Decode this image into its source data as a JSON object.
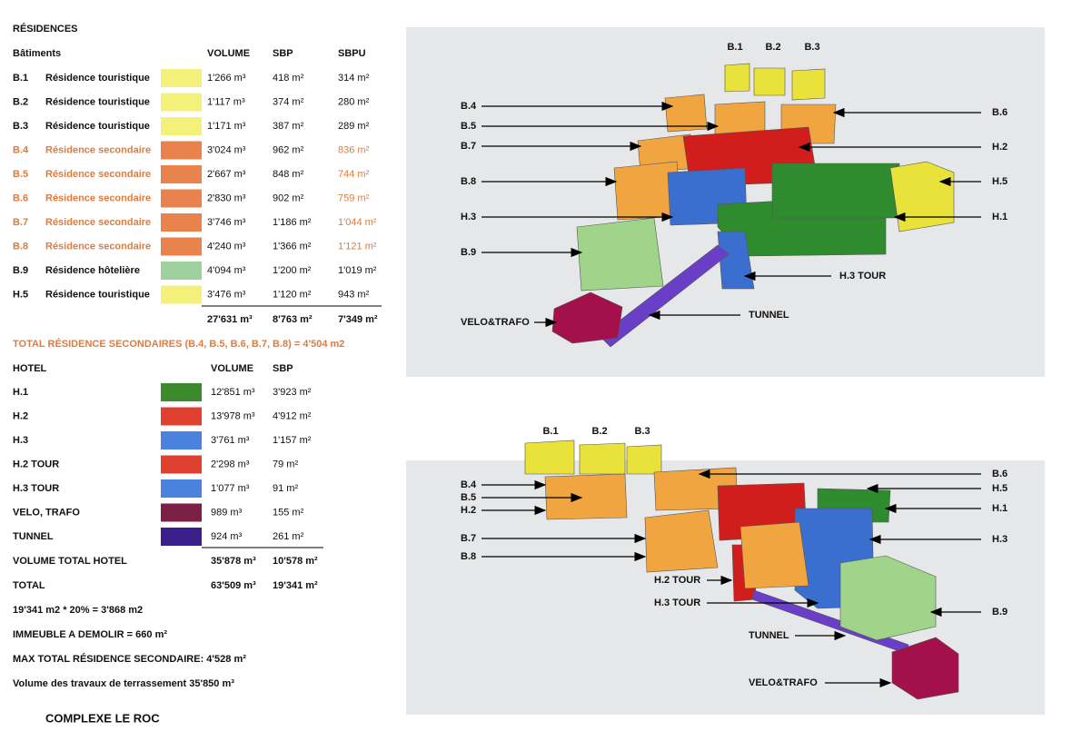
{
  "residences": {
    "title": "RÉSIDENCES",
    "headers": [
      "Bâtiments",
      "VOLUME",
      "SBP",
      "SBPU"
    ],
    "rows": [
      [
        "B.1",
        "Résidence touristique",
        "1'266 m³",
        "418 m²",
        "314 m²"
      ],
      [
        "B.2",
        "Résidence touristique",
        "1'117 m³",
        "374 m²",
        "280 m²"
      ],
      [
        "B.3",
        "Résidence touristique",
        "1'171 m³",
        "387 m²",
        "289 m²"
      ],
      [
        "B.4",
        "Résidence secondaire",
        "3'024 m³",
        "962 m²",
        "836 m²"
      ],
      [
        "B.5",
        "Résidence secondaire",
        "2'667 m³",
        "848 m²",
        "744 m²"
      ],
      [
        "B.6",
        "Résidence secondaire",
        "2'830 m³",
        "902 m²",
        "759 m²"
      ],
      [
        "B.7",
        "Résidence secondaire",
        "3'746 m³",
        "1'186 m²",
        "1'044 m²"
      ],
      [
        "B.8",
        "Résidence secondaire",
        "4'240 m³",
        "1'366 m²",
        "1'121 m²"
      ],
      [
        "B.9",
        "Résidence hôtelière",
        "4'094 m³",
        "1'200 m²",
        "1'019 m²"
      ],
      [
        "H.5",
        "Résidence touristique",
        "3'476 m³",
        "1'120 m²",
        "943 m²"
      ]
    ],
    "totals": [
      "27'631 m³",
      "8'763 m²",
      "7'349 m²"
    ]
  },
  "secondary_total": "TOTAL RÉSIDENCE SECONDAIRES (B.4, B.5, B.6, B.7, B.8) = 4'504 m2",
  "hotel": {
    "headers": [
      "HOTEL",
      "VOLUME",
      "SBP"
    ],
    "rows": [
      [
        "H.1",
        "12'851 m³",
        "3'923 m²"
      ],
      [
        "H.2",
        "13'978 m³",
        "4'912 m²"
      ],
      [
        "H.3",
        "3'761 m³",
        "1'157 m²"
      ],
      [
        "H.2 TOUR",
        "2'298 m³",
        "79 m²"
      ],
      [
        "H.3 TOUR",
        "1'077 m³",
        "91 m²"
      ],
      [
        "VELO, TRAFO",
        "989 m³",
        "155 m²"
      ],
      [
        "TUNNEL",
        "924 m³",
        "261 m²"
      ]
    ],
    "volume_total": [
      "VOLUME TOTAL HOTEL",
      "35'878 m³",
      "10'578 m²"
    ],
    "total": [
      "TOTAL",
      "63'509 m³",
      "19'341 m²"
    ]
  },
  "notes": [
    "19'341 m2 * 20% = 3'868 m2",
    "IMMEUBLE A DEMOLIR = 660 m²",
    "MAX TOTAL RÉSIDENCE SECONDAIRE: 4'528 m²",
    "Volume des travaux de terrassement  35'850 m³"
  ],
  "footer": "COMPLEXE LE ROC",
  "diagram_top": {
    "labels": [
      "B.1",
      "B.2",
      "B.3",
      "B.4",
      "B.5",
      "B.7",
      "B.8",
      "H.3",
      "B.9",
      "VELO&TRAFO",
      "B.6",
      "H.2",
      "H.5",
      "H.1",
      "H.3 TOUR",
      "TUNNEL"
    ]
  },
  "diagram_bottom": {
    "labels": [
      "B.1",
      "B.2",
      "B.3",
      "B.4",
      "B.5",
      "H.2",
      "B.7",
      "B.8",
      "H.2 TOUR",
      "H.3 TOUR",
      "TUNNEL",
      "VELO&TRAFO",
      "B.6",
      "H.5",
      "H.1",
      "H.3",
      "B.9"
    ]
  }
}
